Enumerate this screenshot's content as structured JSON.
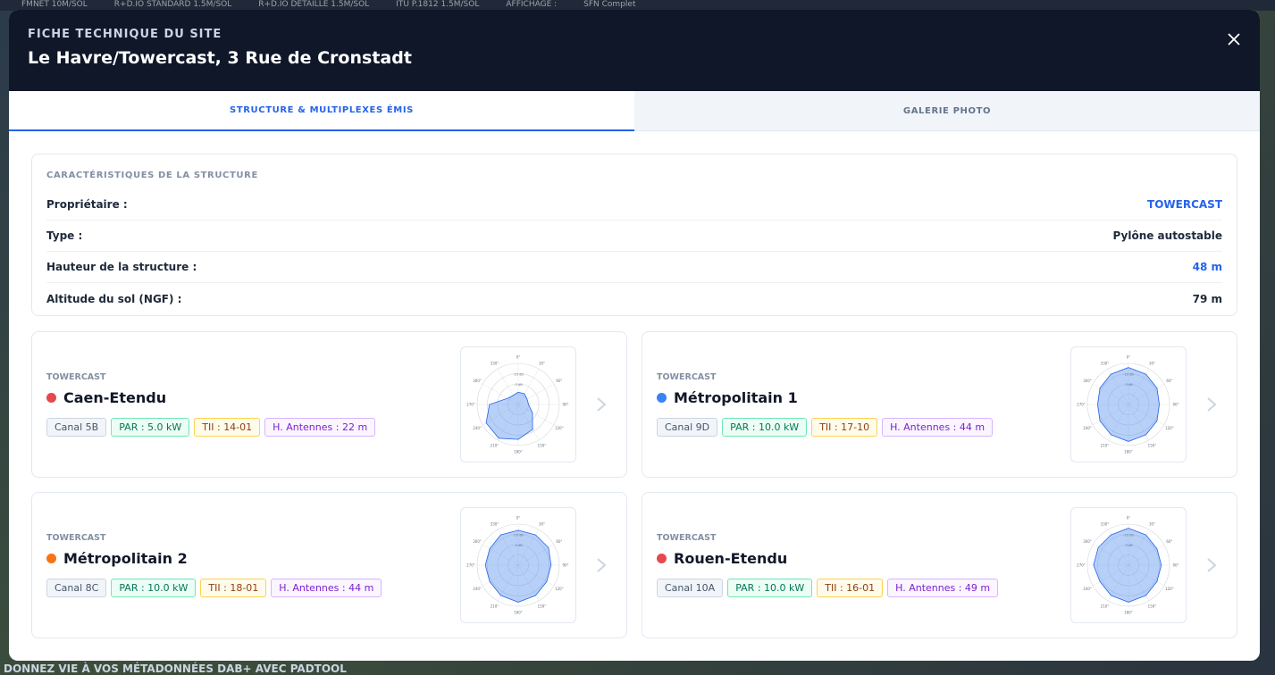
{
  "background": {
    "topbar": [
      "FMNET 10M/SOL",
      "R+D.IO STANDARD 1.5M/SOL",
      "R+D.IO DÉTAILLÉ 1.5M/SOL",
      "ITU P.1812 1.5M/SOL",
      "AFFICHAGE :",
      "SFN Complet"
    ],
    "footer": "DONNEZ VIE À VOS MÉTADONNÉES DAB+ AVEC PADTOOL"
  },
  "modal": {
    "kicker": "FICHE TECHNIQUE DU SITE",
    "title": "Le Havre/Towercast, 3 Rue de Cronstadt"
  },
  "tabs": [
    "STRUCTURE & MULTIPLEXES ÉMIS",
    "GALERIE PHOTO"
  ],
  "structure": {
    "title": "CARACTÉRISTIQUES DE LA STRUCTURE",
    "rows": [
      [
        "Propriétaire :",
        "TOWERCAST"
      ],
      [
        "Type :",
        "Pylône autostable"
      ],
      [
        "Hauteur de la structure :",
        "48 m"
      ],
      [
        "Altitude du sol (NGF) :",
        "79 m"
      ]
    ]
  },
  "polar": {
    "angles": [
      "0°",
      "30°",
      "60°",
      "90°",
      "120°",
      "150°",
      "180°",
      "210°",
      "240°",
      "270°",
      "300°",
      "330°"
    ],
    "rings": [
      "-3 dB",
      "-10 dB"
    ]
  },
  "multiplexes": [
    {
      "operator": "TOWERCAST",
      "name": "Caen-Etendu",
      "color": "#e5484d",
      "tags": [
        "Canal 5B",
        "PAR : 5.0 kW",
        "TII : 14-01",
        "H. Antennes : 22 m"
      ],
      "pattern": [
        0.3,
        0.3,
        0.25,
        0.25,
        0.4,
        0.7,
        0.85,
        0.95,
        0.9,
        0.7,
        0.3,
        0.25
      ]
    },
    {
      "operator": "TOWERCAST",
      "name": "Métropolitain 1",
      "color": "#3b82f6",
      "tags": [
        "Canal 9D",
        "PAR : 10.0 kW",
        "TII : 17-10",
        "H. Antennes : 44 m"
      ],
      "pattern": [
        0.9,
        0.85,
        0.8,
        0.75,
        0.8,
        0.85,
        0.9,
        0.85,
        0.8,
        0.75,
        0.8,
        0.85
      ]
    },
    {
      "operator": "TOWERCAST",
      "name": "Métropolitain 2",
      "color": "#f97316",
      "tags": [
        "Canal 8C",
        "PAR : 10.0 kW",
        "TII : 18-01",
        "H. Antennes : 44 m"
      ],
      "pattern": [
        0.85,
        0.85,
        0.85,
        0.8,
        0.8,
        0.85,
        0.9,
        0.85,
        0.8,
        0.8,
        0.8,
        0.85
      ]
    },
    {
      "operator": "TOWERCAST",
      "name": "Rouen-Etendu",
      "color": "#e5484d",
      "tags": [
        "Canal 10A",
        "PAR : 10.0 kW",
        "TII : 16-01",
        "H. Antennes : 49 m"
      ],
      "pattern": [
        0.9,
        0.85,
        0.8,
        0.8,
        0.8,
        0.85,
        0.9,
        0.85,
        0.8,
        0.85,
        0.85,
        0.85
      ]
    }
  ]
}
